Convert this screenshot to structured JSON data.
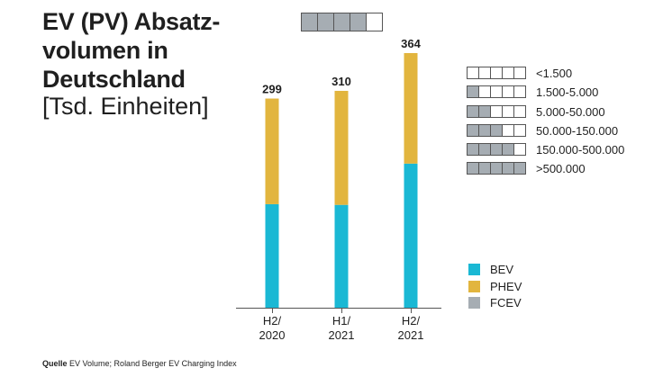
{
  "title_lines": [
    "EV (PV) Absatz-",
    "volumen in",
    "Deutschland"
  ],
  "subtitle": "[Tsd. Einheiten]",
  "source_label": "Quelle",
  "source_text": "EV Volume; Roland Berger EV Charging Index",
  "header_indicator": {
    "filled": 4,
    "total": 5
  },
  "scale": [
    {
      "label": "<1.500",
      "filled": 0
    },
    {
      "label": "1.500-5.000",
      "filled": 1
    },
    {
      "label": "5.000-50.000",
      "filled": 2
    },
    {
      "label": "50.000-150.000",
      "filled": 3
    },
    {
      "label": "150.000-500.000",
      "filled": 4
    },
    {
      "label": ">500.000",
      "filled": 5
    }
  ],
  "colors": {
    "BEV": "#1ab8d4",
    "PHEV": "#e2b53e",
    "FCEV": "#a6adb3"
  },
  "chart_data": {
    "type": "bar",
    "stacked": true,
    "categories": [
      [
        "H2/",
        "2020"
      ],
      [
        "H1/",
        "2021"
      ],
      [
        "H2/",
        "2021"
      ]
    ],
    "totals": [
      "299",
      "310",
      "364"
    ],
    "series": [
      {
        "name": "BEV",
        "values": [
          148,
          147,
          206
        ]
      },
      {
        "name": "PHEV",
        "values": [
          151,
          163,
          158
        ]
      },
      {
        "name": "FCEV",
        "values": [
          0,
          0,
          0
        ]
      }
    ],
    "ylim": [
      0,
      400
    ],
    "legend": "right",
    "grid": false
  }
}
